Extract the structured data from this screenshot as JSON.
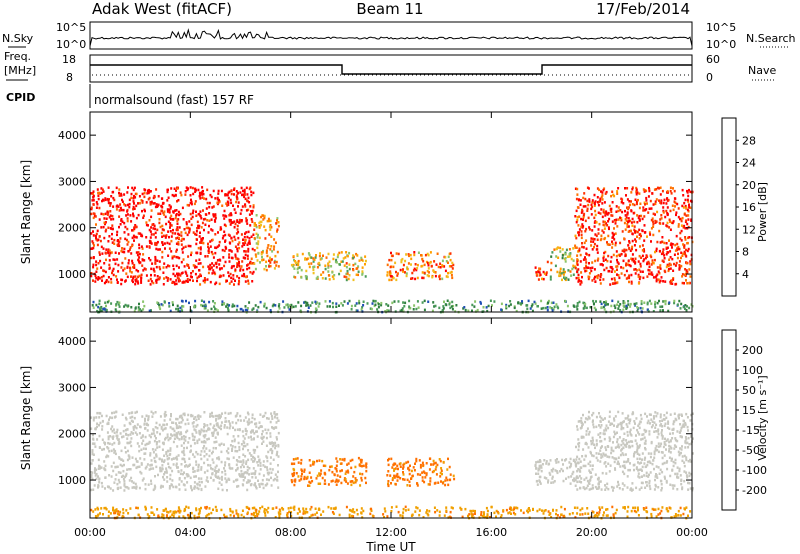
{
  "header": {
    "station": "Adak West (fitACF)",
    "beam": "Beam 11",
    "date": "17/Feb/2014"
  },
  "status_panels": {
    "nsky_label": "N.Sky",
    "nsearch_label": "N.Search",
    "noise_tick_high": "10^5",
    "noise_tick_low": "10^0",
    "freq_label": "Freq.",
    "freq_unit": "[MHz]",
    "freq_tick_high": "18",
    "freq_tick_low": "8",
    "nave_label": "Nave",
    "nave_tick_high": "60",
    "nave_tick_low": "0",
    "cpid_label": "CPID",
    "cpid_text": "normalsound (fast) 157 RF"
  },
  "power_colorbar": {
    "label": "Power [dB]",
    "levels": [
      "28",
      "24",
      "20",
      "16",
      "12",
      "8",
      "4"
    ],
    "colors": [
      "#0000ff",
      "#1f4fb4",
      "#2f7f3f",
      "#4a9a5a",
      "#8ac46b",
      "#f0c020",
      "#ffa000",
      "#ff7000",
      "#ff3000",
      "#ff0000"
    ]
  },
  "velocity_colorbar": {
    "label": "Velocity [m s⁻¹]",
    "levels": [
      "200",
      "100",
      "50",
      "15",
      "-15",
      "-50",
      "-100",
      "-200"
    ],
    "colors": [
      "#1a2fa8",
      "#2f7f3f",
      "#6cc040",
      "#a8a8a8",
      "#c8c8c0",
      "#f0a000",
      "#ff7000",
      "#ff3000",
      "#ff0000"
    ]
  },
  "chart_data": [
    {
      "type": "heatmap",
      "title": "Power",
      "xlabel": "",
      "ylabel": "Slant Range [km]",
      "xlim": [
        "00:00",
        "24:00"
      ],
      "ylim": [
        180,
        4500
      ],
      "yticks": [
        1000,
        2000,
        3000,
        4000
      ],
      "regions": [
        {
          "t0": 0.0,
          "t1": 6.5,
          "r0": 800,
          "r1": 2900,
          "level": "high",
          "value_db": 28
        },
        {
          "t0": 6.5,
          "t1": 7.5,
          "r0": 1100,
          "r1": 2300,
          "level": "mixed",
          "value_db": 18
        },
        {
          "t0": 8.0,
          "t1": 11.0,
          "r0": 900,
          "r1": 1500,
          "level": "mixed",
          "value_db": 16
        },
        {
          "t0": 11.8,
          "t1": 14.5,
          "r0": 900,
          "r1": 1500,
          "level": "mixed",
          "value_db": 20
        },
        {
          "t0": 17.7,
          "t1": 18.3,
          "r0": 900,
          "r1": 1300,
          "level": "high",
          "value_db": 26
        },
        {
          "t0": 18.3,
          "t1": 19.5,
          "r0": 900,
          "r1": 1600,
          "level": "mixed",
          "value_db": 14
        },
        {
          "t0": 19.3,
          "t1": 24.0,
          "r0": 800,
          "r1": 2900,
          "level": "high",
          "value_db": 26
        },
        {
          "t0": 0.0,
          "t1": 24.0,
          "r0": 200,
          "r1": 450,
          "level": "low",
          "value_db": 6
        }
      ]
    },
    {
      "type": "heatmap",
      "title": "Velocity",
      "xlabel": "Time UT",
      "ylabel": "Slant Range [km]",
      "xlim": [
        "00:00",
        "24:00"
      ],
      "ylim": [
        180,
        4500
      ],
      "xticks": [
        "00:00",
        "04:00",
        "08:00",
        "12:00",
        "16:00",
        "20:00",
        "00:00"
      ],
      "yticks": [
        1000,
        2000,
        3000,
        4000
      ],
      "regions": [
        {
          "t0": 0.0,
          "t1": 7.5,
          "r0": 800,
          "r1": 2500,
          "value_ms": 0
        },
        {
          "t0": 8.0,
          "t1": 11.0,
          "r0": 900,
          "r1": 1500,
          "value_ms": -60
        },
        {
          "t0": 11.8,
          "t1": 14.5,
          "r0": 900,
          "r1": 1500,
          "value_ms": -60
        },
        {
          "t0": 17.7,
          "t1": 19.5,
          "r0": 900,
          "r1": 1500,
          "value_ms": 0
        },
        {
          "t0": 19.3,
          "t1": 24.0,
          "r0": 800,
          "r1": 2500,
          "value_ms": 0
        },
        {
          "t0": 0.0,
          "t1": 24.0,
          "r0": 200,
          "r1": 450,
          "value_ms": -40
        }
      ]
    }
  ]
}
